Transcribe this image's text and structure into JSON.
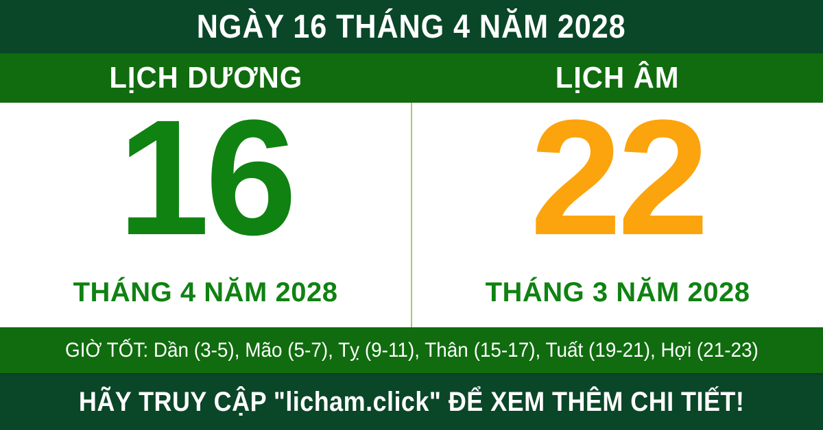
{
  "header": {
    "title": "NGÀY 16 THÁNG 4 NĂM 2028"
  },
  "calendar": {
    "solar": {
      "label": "LỊCH DƯƠNG",
      "day": "16",
      "month_year": "THÁNG 4 NĂM 2028"
    },
    "lunar": {
      "label": "LỊCH ÂM",
      "day": "22",
      "month_year": "THÁNG 3 NĂM 2028"
    }
  },
  "good_hours": {
    "text": "GIỜ TỐT: Dần (3-5), Mão (5-7), Tỵ (9-11), Thân (15-17), Tuất (19-21), Hợi (21-23)"
  },
  "footer": {
    "text": "HÃY TRUY CẬP \"licham.click\" ĐỂ XEM THÊM CHI TIẾT!"
  },
  "colors": {
    "dark_green": "#0A4628",
    "band_green": "#106C0E",
    "green_text": "#108212",
    "day_orange": "#FCA40D",
    "divider_green": "#9ED165",
    "bg_white": "#FFFFFF"
  }
}
